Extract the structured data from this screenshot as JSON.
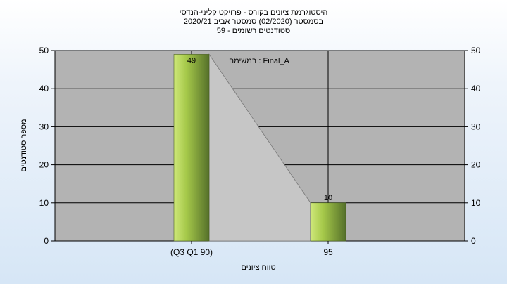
{
  "chart_data": {
    "type": "bar",
    "title_lines": [
      "היסטוגרמת ציונים בקורס - פרויקט קליני-הנדסי",
      "בסמסטר  (02/2020)  סמסטר אביב 2020/21",
      "סטודנטים רשומים - 59"
    ],
    "categories": [
      "(Q3 Q1 90)",
      "95"
    ],
    "values": [
      49,
      10
    ],
    "data_labels": [
      "49",
      "10"
    ],
    "xlabel": "טווח ציונים",
    "ylabel": "מספר סטודנטים",
    "ylim": [
      0,
      50
    ],
    "yticks": [
      "0",
      "10",
      "20",
      "30",
      "40",
      "50"
    ],
    "annotation": "במשימה : Final_A",
    "grid": true,
    "secondary_y_axis": true,
    "colors": {
      "plot_background": "#b3b3b3",
      "bar_light": "#cfe87a",
      "bar_mid": "#a6c94a",
      "bar_dark": "#55702a",
      "connector_fill": "#c6c6c6",
      "grid": "#000000"
    }
  }
}
